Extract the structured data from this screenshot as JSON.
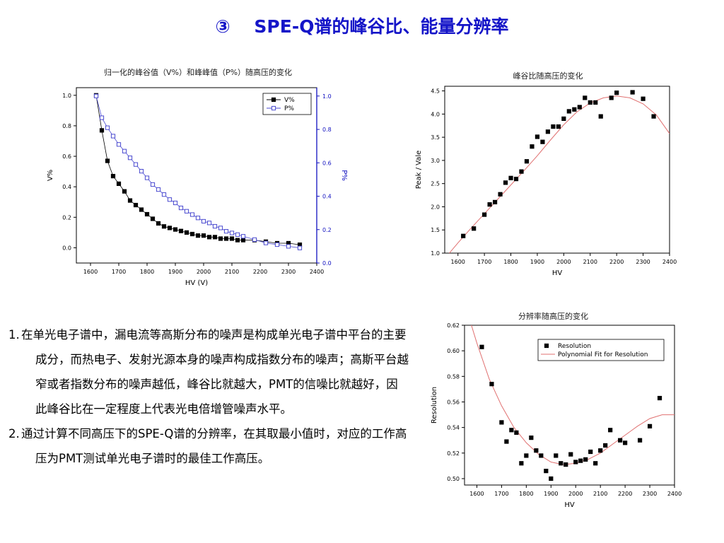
{
  "slide": {
    "title": "③　 SPE-Q谱的峰谷比、能量分辨率"
  },
  "notes": [
    {
      "num": "1.",
      "text": "在单光电子谱中，漏电流等高斯分布的噪声是构成单光电子谱中平台的主要成分，而热电子、发射光源本身的噪声构成指数分布的噪声；高斯平台越窄或者指数分布的噪声越低，峰谷比就越大，PMT的信噪比就越好，因此峰谷比在一定程度上代表光电倍增管噪声水平。"
    },
    {
      "num": "2.",
      "text": "通过计算不同高压下的SPE-Q谱的分辨率，在其取最小值时，对应的工作高压为PMT测试单光电子谱时的最佳工作高压。"
    }
  ],
  "colors": {
    "title": "#1515c8",
    "series_black": "#000000",
    "series_blue": "#4a4ad0",
    "right_axis_blue": "#1010c0",
    "fit_red": "#e07070"
  },
  "chart_data": [
    {
      "type": "line",
      "title": "归一化的峰谷值（V%）和峰峰值（P%）随高压的变化",
      "xlabel": "HV (V)",
      "ylabel": "V%",
      "y2label": "P%",
      "xlim": [
        1550,
        2400
      ],
      "ylim": [
        -0.1,
        1.05
      ],
      "y2lim": [
        0.0,
        1.05
      ],
      "xticks": [
        1600,
        1700,
        1800,
        1900,
        2000,
        2100,
        2200,
        2300,
        2400
      ],
      "yticks": [
        "0.0",
        "0.2",
        "0.4",
        "0.6",
        "0.8",
        "1.0"
      ],
      "y2ticks": [
        "0.0",
        "0.2",
        "0.4",
        "0.6",
        "0.8",
        "1.0"
      ],
      "legend_position": "top-right",
      "series": [
        {
          "name": "V%",
          "marker": "square-filled",
          "x": [
            1620,
            1640,
            1660,
            1680,
            1700,
            1720,
            1740,
            1760,
            1780,
            1800,
            1820,
            1840,
            1860,
            1880,
            1900,
            1920,
            1940,
            1960,
            1980,
            2000,
            2020,
            2040,
            2060,
            2080,
            2100,
            2120,
            2140,
            2180,
            2220,
            2260,
            2300,
            2340
          ],
          "values": [
            1.0,
            0.77,
            0.57,
            0.47,
            0.42,
            0.37,
            0.31,
            0.28,
            0.25,
            0.22,
            0.19,
            0.16,
            0.14,
            0.13,
            0.12,
            0.11,
            0.1,
            0.09,
            0.08,
            0.08,
            0.07,
            0.07,
            0.06,
            0.06,
            0.06,
            0.05,
            0.05,
            0.05,
            0.04,
            0.03,
            0.03,
            0.02
          ]
        },
        {
          "name": "P%",
          "marker": "square-open",
          "x": [
            1620,
            1640,
            1660,
            1680,
            1700,
            1720,
            1740,
            1760,
            1780,
            1800,
            1820,
            1840,
            1860,
            1880,
            1900,
            1920,
            1940,
            1960,
            1980,
            2000,
            2020,
            2040,
            2060,
            2080,
            2100,
            2120,
            2140,
            2180,
            2220,
            2260,
            2300,
            2340
          ],
          "values": [
            1.0,
            0.87,
            0.81,
            0.76,
            0.71,
            0.67,
            0.63,
            0.59,
            0.55,
            0.51,
            0.47,
            0.44,
            0.41,
            0.38,
            0.36,
            0.33,
            0.31,
            0.29,
            0.27,
            0.25,
            0.24,
            0.22,
            0.21,
            0.19,
            0.18,
            0.17,
            0.16,
            0.14,
            0.12,
            0.11,
            0.1,
            0.09
          ]
        }
      ]
    },
    {
      "type": "scatter",
      "title": "峰谷比随高压的变化",
      "xlabel": "HV",
      "ylabel": "Peak / Vale",
      "xlim": [
        1550,
        2400
      ],
      "ylim": [
        1.0,
        4.6
      ],
      "xticks": [
        1600,
        1700,
        1800,
        1900,
        2000,
        2100,
        2200,
        2300,
        2400
      ],
      "yticks": [
        "1.0",
        "1.5",
        "2.0",
        "2.5",
        "3.0",
        "3.5",
        "4.0",
        "4.5"
      ],
      "series": [
        {
          "marker": "square-filled",
          "x": [
            1620,
            1660,
            1700,
            1720,
            1740,
            1760,
            1780,
            1800,
            1820,
            1840,
            1860,
            1880,
            1900,
            1920,
            1940,
            1960,
            1980,
            2000,
            2020,
            2040,
            2060,
            2080,
            2100,
            2120,
            2140,
            2180,
            2200,
            2260,
            2300,
            2340
          ],
          "values": [
            1.37,
            1.53,
            1.83,
            2.05,
            2.1,
            2.27,
            2.52,
            2.62,
            2.6,
            2.76,
            2.98,
            3.3,
            3.51,
            3.4,
            3.62,
            3.73,
            3.73,
            3.9,
            4.06,
            4.1,
            4.15,
            4.35,
            4.25,
            4.25,
            3.95,
            4.35,
            4.46,
            4.47,
            4.33,
            3.95
          ]
        }
      ],
      "fit": {
        "x": [
          1560,
          1600,
          1650,
          1700,
          1750,
          1800,
          1850,
          1900,
          1950,
          2000,
          2050,
          2100,
          2150,
          2200,
          2250,
          2300,
          2350,
          2400
        ],
        "values": [
          0.95,
          1.22,
          1.54,
          1.85,
          2.16,
          2.47,
          2.78,
          3.1,
          3.44,
          3.77,
          4.05,
          4.24,
          4.35,
          4.39,
          4.35,
          4.22,
          3.98,
          3.58
        ]
      }
    },
    {
      "type": "scatter",
      "title": "分辨率随高压的变化",
      "xlabel": "HV",
      "ylabel": "Resolution",
      "xlim": [
        1550,
        2400
      ],
      "ylim": [
        0.495,
        0.62
      ],
      "xticks": [
        1600,
        1700,
        1800,
        1900,
        2000,
        2100,
        2200,
        2300,
        2400
      ],
      "yticks": [
        "0.50",
        "0.52",
        "0.54",
        "0.56",
        "0.58",
        "0.60",
        "0.62"
      ],
      "legend_position": "top-right",
      "legend": [
        "Resolution",
        "Polynomial Fit for Resolution"
      ],
      "series": [
        {
          "name": "Resolution",
          "marker": "square-filled",
          "x": [
            1620,
            1660,
            1700,
            1720,
            1740,
            1760,
            1780,
            1800,
            1820,
            1840,
            1860,
            1880,
            1900,
            1920,
            1940,
            1960,
            1980,
            2000,
            2020,
            2040,
            2060,
            2080,
            2100,
            2120,
            2140,
            2180,
            2200,
            2260,
            2300,
            2340
          ],
          "values": [
            0.603,
            0.574,
            0.544,
            0.529,
            0.538,
            0.536,
            0.512,
            0.518,
            0.532,
            0.522,
            0.518,
            0.506,
            0.5,
            0.518,
            0.512,
            0.511,
            0.519,
            0.513,
            0.514,
            0.515,
            0.521,
            0.512,
            0.522,
            0.526,
            0.538,
            0.53,
            0.528,
            0.53,
            0.541,
            0.563
          ]
        }
      ],
      "fit": {
        "name": "Polynomial Fit for Resolution",
        "x": [
          1570,
          1600,
          1650,
          1700,
          1750,
          1800,
          1850,
          1900,
          1950,
          2000,
          2050,
          2100,
          2150,
          2200,
          2250,
          2300,
          2350,
          2400
        ],
        "values": [
          0.625,
          0.606,
          0.578,
          0.557,
          0.54,
          0.528,
          0.519,
          0.513,
          0.511,
          0.512,
          0.515,
          0.52,
          0.527,
          0.534,
          0.541,
          0.547,
          0.55,
          0.55
        ]
      }
    }
  ]
}
